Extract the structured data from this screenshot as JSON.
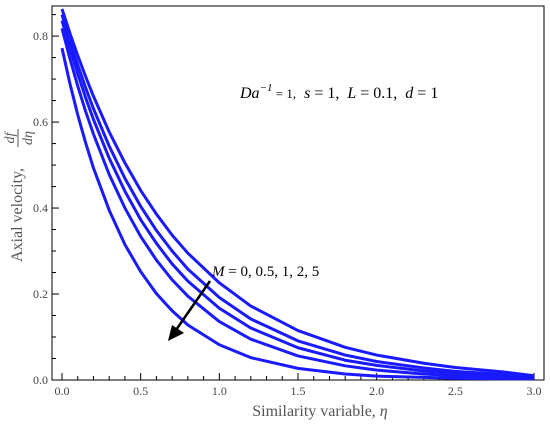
{
  "chart_data": {
    "type": "line",
    "title": "",
    "xlabel": "Similarity variable, ",
    "xlabel_symbol": "η",
    "ylabel": "Axial velocity, ",
    "ylabel_num": "df",
    "ylabel_den": "dη",
    "xlim": [
      0,
      3
    ],
    "ylim": [
      0,
      0.87
    ],
    "xticks": [
      "0.0",
      "0.5",
      "1.0",
      "1.5",
      "2.0",
      "2.5",
      "3.0"
    ],
    "yticks": [
      "0.0",
      "0.2",
      "0.4",
      "0.6",
      "0.8"
    ],
    "line_color": "#1a1aff",
    "params_annotation": {
      "da_label": "Da",
      "da_exp": "−1",
      "da_eq": " = 1,",
      "s_label": "s",
      "s_eq": " = 1,",
      "L_label": "L",
      "L_eq": " = 0.1,",
      "d_label": "d",
      "d_eq": " = 1"
    },
    "m_annotation": {
      "label": "M",
      "values_text": " = 0, 0.5, 1, 2, 5"
    },
    "x": [
      0,
      0.05,
      0.1,
      0.15,
      0.2,
      0.3,
      0.4,
      0.5,
      0.6,
      0.7,
      0.8,
      1.0,
      1.2,
      1.5,
      1.8,
      2.0,
      2.3,
      2.5,
      2.8,
      3.0
    ],
    "series": [
      {
        "values": [
          0.863,
          0.807,
          0.755,
          0.706,
          0.66,
          0.577,
          0.505,
          0.441,
          0.386,
          0.337,
          0.295,
          0.226,
          0.172,
          0.115,
          0.076,
          0.058,
          0.039,
          0.029,
          0.019,
          0.01
        ]
      },
      {
        "values": [
          0.85,
          0.789,
          0.733,
          0.68,
          0.631,
          0.544,
          0.469,
          0.404,
          0.348,
          0.3,
          0.258,
          0.192,
          0.142,
          0.091,
          0.058,
          0.043,
          0.028,
          0.02,
          0.013,
          0.009
        ]
      },
      {
        "values": [
          0.836,
          0.772,
          0.712,
          0.657,
          0.606,
          0.516,
          0.439,
          0.373,
          0.318,
          0.27,
          0.23,
          0.167,
          0.121,
          0.075,
          0.046,
          0.034,
          0.021,
          0.016,
          0.01,
          0.008
        ]
      },
      {
        "values": [
          0.818,
          0.748,
          0.684,
          0.625,
          0.572,
          0.478,
          0.4,
          0.334,
          0.279,
          0.233,
          0.195,
          0.136,
          0.095,
          0.056,
          0.033,
          0.023,
          0.014,
          0.01,
          0.007,
          0.006
        ]
      },
      {
        "values": [
          0.772,
          0.69,
          0.617,
          0.552,
          0.493,
          0.395,
          0.315,
          0.252,
          0.201,
          0.161,
          0.128,
          0.082,
          0.052,
          0.027,
          0.014,
          0.009,
          0.006,
          0.004,
          0.003,
          0.003
        ]
      }
    ]
  }
}
